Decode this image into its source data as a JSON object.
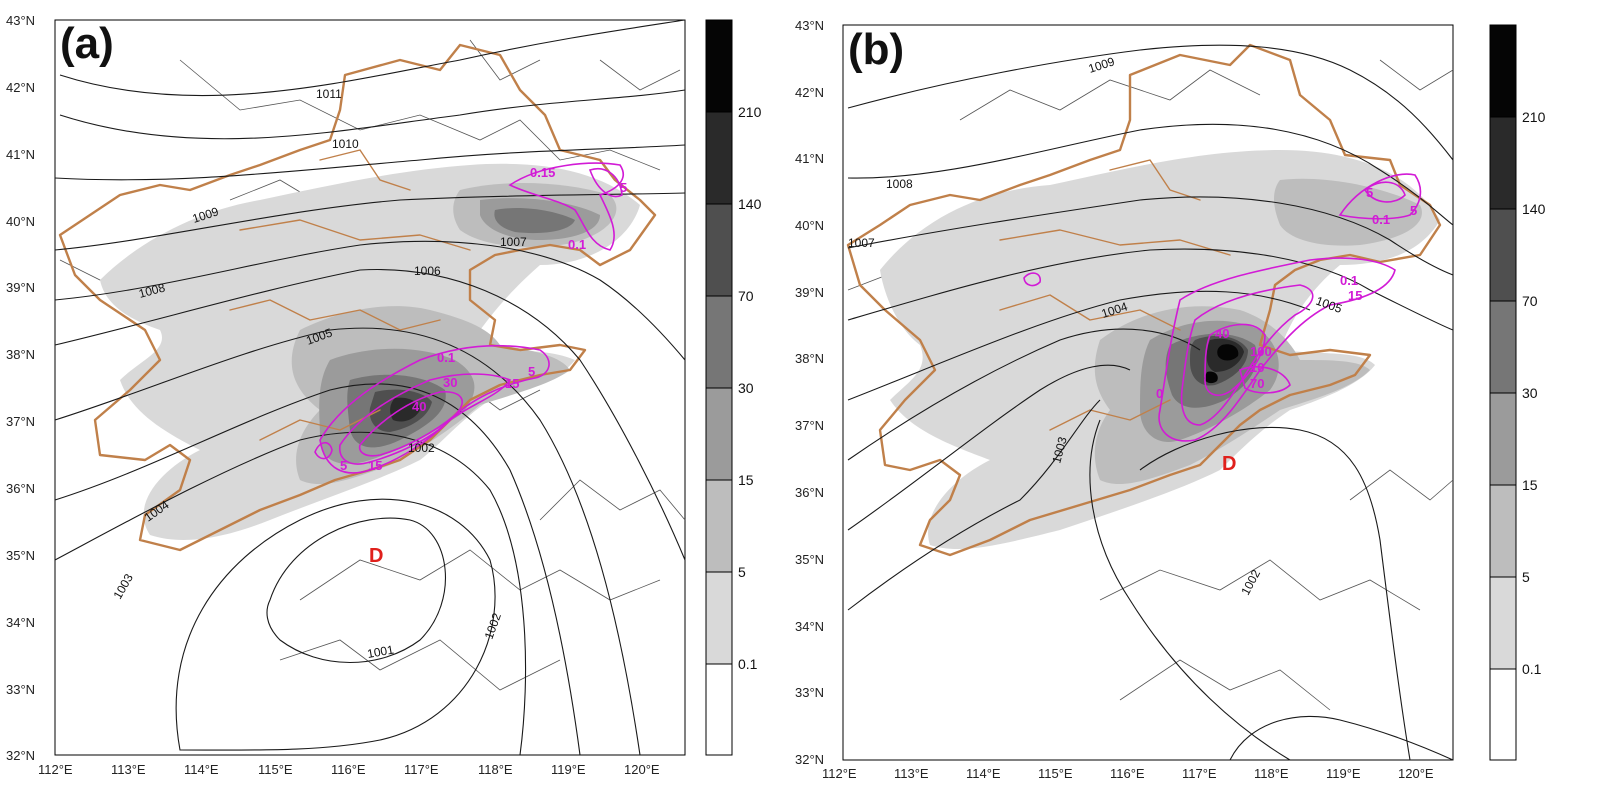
{
  "panels": [
    {
      "letter": "(a)",
      "lat_ticks": [
        "43°N",
        "42°N",
        "41°N",
        "40°N",
        "39°N",
        "38°N",
        "37°N",
        "36°N",
        "35°N",
        "34°N",
        "33°N",
        "32°N"
      ],
      "lon_ticks": [
        "112°E",
        "113°E",
        "114°E",
        "115°E",
        "116°E",
        "117°E",
        "118°E",
        "119°E",
        "120°E"
      ],
      "isobar_labels": [
        "1011",
        "1010",
        "1009",
        "1008",
        "1007",
        "1006",
        "1005",
        "1004",
        "1003",
        "1002",
        "1002",
        "1001"
      ],
      "rain_labels": [
        "0.15",
        "5",
        "0.1",
        "0.1",
        "5",
        "15",
        "30",
        "40",
        "5",
        "15"
      ],
      "low_label": "D",
      "colorbar_labels": [
        "210",
        "140",
        "70",
        "30",
        "15",
        "5",
        "0.1"
      ]
    },
    {
      "letter": "(b)",
      "lat_ticks": [
        "43°N",
        "42°N",
        "41°N",
        "40°N",
        "39°N",
        "38°N",
        "37°N",
        "36°N",
        "35°N",
        "34°N",
        "33°N",
        "32°N"
      ],
      "lon_ticks": [
        "112°E",
        "113°E",
        "114°E",
        "115°E",
        "116°E",
        "117°E",
        "118°E",
        "119°E",
        "120°E"
      ],
      "isobar_labels": [
        "1009",
        "1008",
        "1007",
        "1005",
        "1004",
        "1003",
        "1002"
      ],
      "rain_labels": [
        "5",
        "5",
        "0.1",
        "0.1",
        "15",
        "40",
        "100",
        "10",
        "70",
        "0"
      ],
      "low_label": "D",
      "colorbar_labels": [
        "210",
        "140",
        "70",
        "30",
        "15",
        "5",
        "0.1"
      ]
    }
  ],
  "colors": {
    "boundary_province": "#c0804a",
    "isobar": "#1a1a1a",
    "rain_contour": "#d21bd6",
    "low_center": "#e0201c",
    "shade_levels": [
      "#ffffff",
      "#d9d9d9",
      "#bdbdbd",
      "#9b9b9b",
      "#767676",
      "#4f4f4f",
      "#2a2a2a",
      "#050505"
    ]
  },
  "icons": [
    "low-pressure-center-marker"
  ]
}
